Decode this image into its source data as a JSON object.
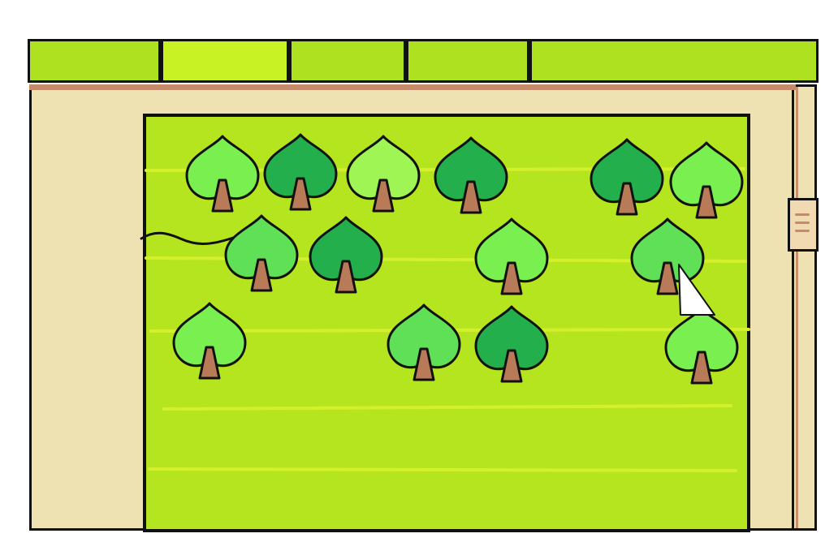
{
  "tabs": [
    {
      "id": "tab-1",
      "active": false
    },
    {
      "id": "tab-2",
      "active": true
    },
    {
      "id": "tab-3",
      "active": false
    },
    {
      "id": "tab-4",
      "active": false
    },
    {
      "id": "tab-5",
      "active": false
    }
  ],
  "colors": {
    "tab": "#aee11f",
    "tab_active": "#c8f224",
    "field": "#b5e51f",
    "field_stripe": "#d4f02c",
    "frame": "#efe2b2",
    "trunk": "#b97a57",
    "outline": "#111111",
    "cursor": "#ffffff"
  },
  "trees": [
    {
      "id": "tree-1",
      "row": 1,
      "shade": "light",
      "color": "#79f04f"
    },
    {
      "id": "tree-2",
      "row": 1,
      "shade": "dark",
      "color": "#23b04c"
    },
    {
      "id": "tree-3",
      "row": 1,
      "shade": "pale",
      "color": "#9ef553"
    },
    {
      "id": "tree-4",
      "row": 1,
      "shade": "dark",
      "color": "#23b04c"
    },
    {
      "id": "tree-5",
      "row": 1,
      "shade": "dark",
      "color": "#23b04c"
    },
    {
      "id": "tree-6",
      "row": 1,
      "shade": "light",
      "color": "#79f04f"
    },
    {
      "id": "tree-7",
      "row": 2,
      "shade": "mid",
      "color": "#5fe056"
    },
    {
      "id": "tree-8",
      "row": 2,
      "shade": "dark",
      "color": "#23b04c"
    },
    {
      "id": "tree-9",
      "row": 2,
      "shade": "light",
      "color": "#79f04f"
    },
    {
      "id": "tree-10",
      "row": 2,
      "shade": "mid",
      "color": "#5fe056"
    },
    {
      "id": "tree-11",
      "row": 3,
      "shade": "light",
      "color": "#79f04f"
    },
    {
      "id": "tree-12",
      "row": 3,
      "shade": "mid",
      "color": "#5fe056"
    },
    {
      "id": "tree-13",
      "row": 3,
      "shade": "dark",
      "color": "#23b04c"
    },
    {
      "id": "tree-14",
      "row": 3,
      "shade": "light",
      "color": "#79f04f"
    }
  ],
  "icons": {
    "cursor": "pointer-cursor-icon",
    "handle": "drag-handle-icon"
  }
}
